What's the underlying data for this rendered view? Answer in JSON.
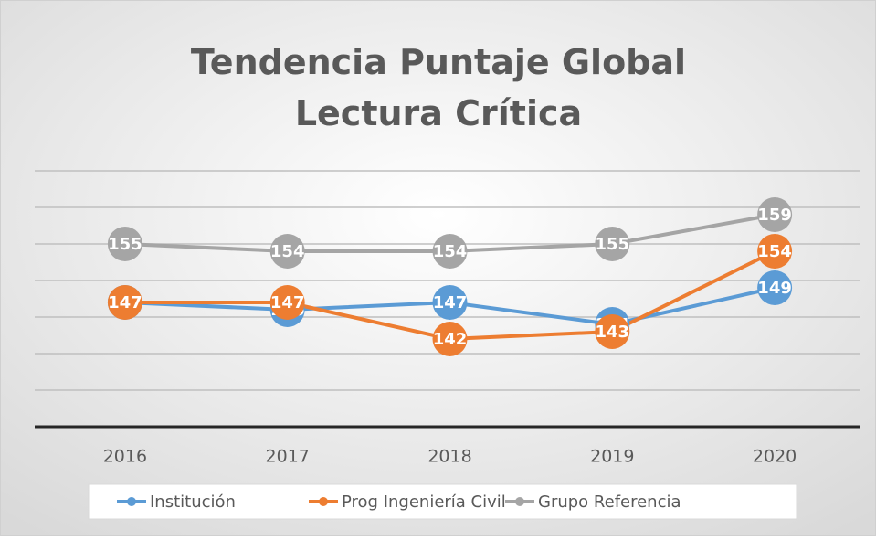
{
  "chart_data": {
    "type": "line",
    "title": "Tendencia Puntaje Global Lectura Crítica",
    "categories": [
      "2016",
      "2017",
      "2018",
      "2019",
      "2020"
    ],
    "series": [
      {
        "name": "Institución",
        "color": "#5b9bd5",
        "values": [
          147,
          146,
          147,
          144,
          149
        ]
      },
      {
        "name": "Prog Ingeniería Civil",
        "color": "#ed7d31",
        "values": [
          147,
          147,
          142,
          143,
          154
        ]
      },
      {
        "name": "Grupo Referencia",
        "color": "#a5a5a5",
        "values": [
          155,
          154,
          154,
          155,
          159
        ]
      }
    ],
    "ylim": [
      130,
      165
    ],
    "yticks": [
      130,
      135,
      140,
      145,
      150,
      155,
      160,
      165
    ],
    "grid": true,
    "legend": "bottom"
  }
}
